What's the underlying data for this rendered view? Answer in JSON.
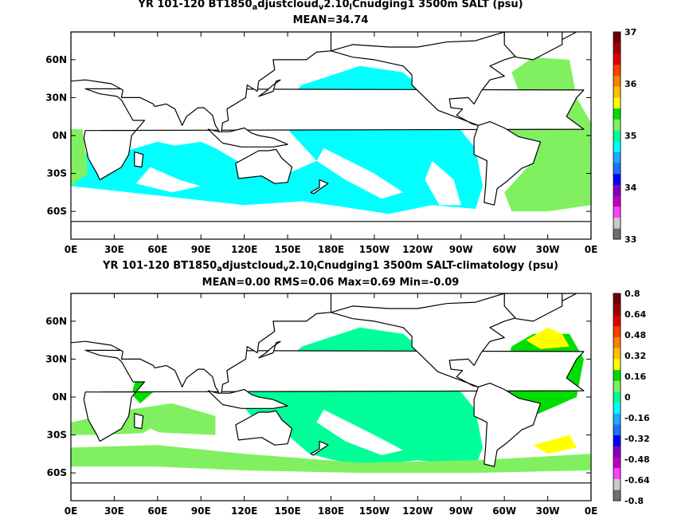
{
  "chart_data": [
    {
      "type": "heatmap",
      "title_parts": [
        "YR 101-120 BT1850",
        "a",
        "djustcloud",
        "v",
        "2.10",
        "l",
        "Cnudging1 3500m SALT (psu)"
      ],
      "subtitle": "MEAN=34.74",
      "variable": "SALT",
      "units": "psu",
      "depth": "3500m",
      "mean": 34.74,
      "xticks": [
        "0E",
        "30E",
        "60E",
        "90E",
        "120E",
        "150E",
        "180E",
        "150W",
        "120W",
        "90W",
        "60W",
        "30W",
        "0E"
      ],
      "yticks": [
        "60N",
        "30N",
        "0N",
        "30S",
        "60S"
      ],
      "colorbar_ticks": [
        "37",
        "36",
        "35",
        "34",
        "33"
      ],
      "colorbar_range": [
        33,
        37
      ],
      "colorbar_colors": [
        "#707070",
        "#c8c8c8",
        "#ff40ff",
        "#c000c0",
        "#8000c0",
        "#0000ff",
        "#2070ff",
        "#20a8ff",
        "#00ffff",
        "#00ff99",
        "#80f060",
        "#00dd00",
        "#ffff00",
        "#ffc000",
        "#ff8000",
        "#ff4000",
        "#e00000",
        "#a00000",
        "#700000"
      ],
      "dominant_values": {
        "Pacific/Indian/Southern": "#00ffff",
        "Atlantic": "#80f060",
        "Caribbean spot": "#ffff00"
      }
    },
    {
      "type": "heatmap",
      "title_parts": [
        "YR 101-120 BT1850",
        "a",
        "djustcloud",
        "v",
        "2.10",
        "l",
        "Cnudging1 3500m SALT-climatology (psu)"
      ],
      "subtitle": "MEAN=0.00   RMS=0.06   Max=0.69   Min=-0.09",
      "variable": "SALT-climatology",
      "units": "psu",
      "depth": "3500m",
      "mean": 0.0,
      "rms": 0.06,
      "max": 0.69,
      "min": -0.09,
      "xticks": [
        "0E",
        "30E",
        "60E",
        "90E",
        "120E",
        "150E",
        "180E",
        "150W",
        "120W",
        "90W",
        "60W",
        "30W",
        "0E"
      ],
      "yticks": [
        "60N",
        "30N",
        "0N",
        "30S",
        "60S"
      ],
      "colorbar_ticks": [
        "0.8",
        "0.64",
        "0.48",
        "0.32",
        "0.16",
        "0",
        "-0.16",
        "-0.32",
        "-0.48",
        "-0.64",
        "-0.8"
      ],
      "colorbar_range": [
        -0.8,
        0.8
      ],
      "colorbar_colors": [
        "#707070",
        "#c8c8c8",
        "#ff40ff",
        "#c000c0",
        "#8000c0",
        "#0000ff",
        "#2070ff",
        "#20a8ff",
        "#00ffff",
        "#00ff99",
        "#80f060",
        "#00dd00",
        "#ffff00",
        "#ffc000",
        "#ff8000",
        "#ff4000",
        "#e00000",
        "#a00000",
        "#700000"
      ],
      "dominant_values": {
        "Pacific": "#00ff99",
        "Southern bands": "#80f060",
        "Atlantic": "#00dd00",
        "N Atlantic": "#ffff00"
      }
    }
  ]
}
